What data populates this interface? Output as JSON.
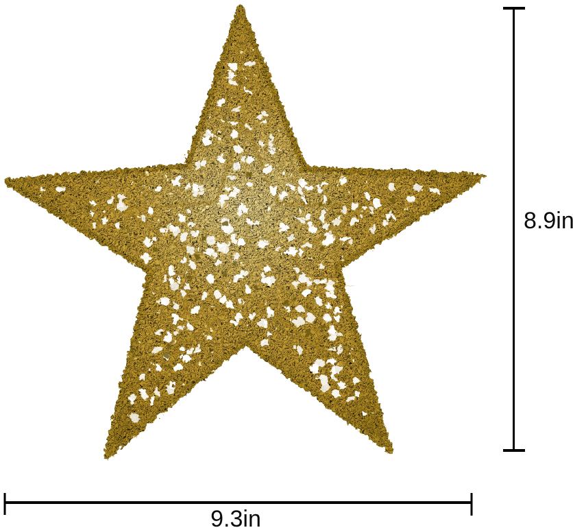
{
  "image": {
    "subject": "Gold glitter wire star ornament with size annotations"
  },
  "star": {
    "color_light": "#eed98e",
    "color_base": "#cda53a",
    "color_mid": "#bb9227",
    "color_dark": "#9a7718",
    "color_rim": "#b08c22",
    "hole_color": "#ffffff",
    "sequin_color": "#6d5a10",
    "sparkle_color": "#fff6cf",
    "wire_color": "#a9861e"
  },
  "dimensions": {
    "height_label": "8.9in",
    "width_label": "9.3in",
    "line_color": "#000000"
  },
  "background": "#ffffff"
}
